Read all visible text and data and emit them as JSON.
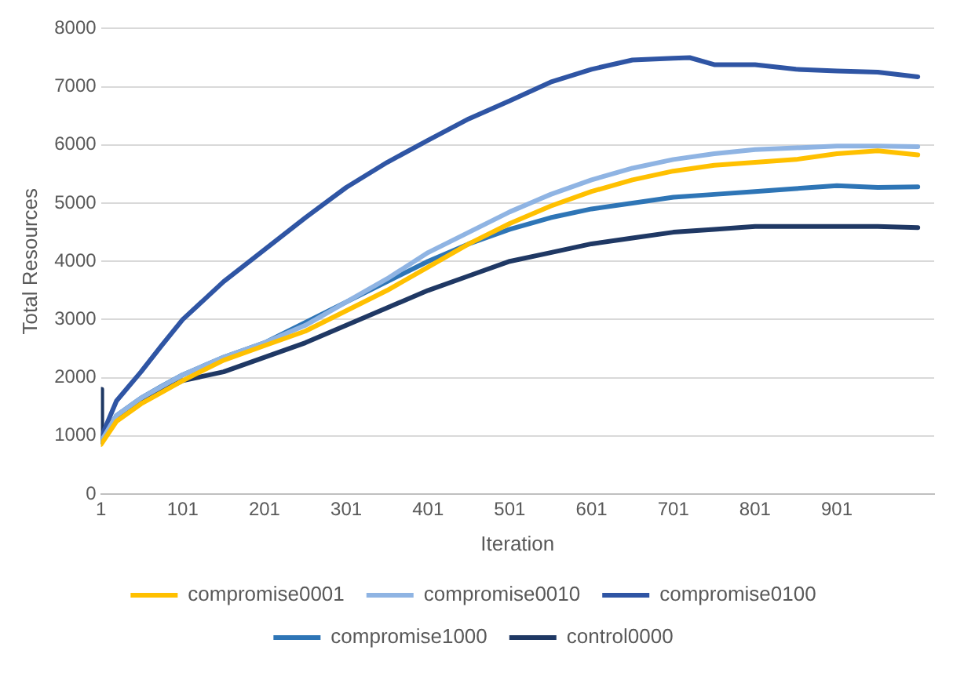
{
  "chart_data": {
    "type": "line",
    "xlabel": "Iteration",
    "ylabel": "Total Resources",
    "xlim": [
      1,
      1020
    ],
    "xticks": [
      1,
      101,
      201,
      301,
      401,
      501,
      601,
      701,
      801,
      901
    ],
    "ylim": [
      0,
      8000
    ],
    "yticks": [
      0,
      1000,
      2000,
      3000,
      4000,
      5000,
      6000,
      7000,
      8000
    ],
    "grid": "y",
    "legend": "bottom",
    "marker": "none",
    "line_style": "solid",
    "series": [
      {
        "name": "compromise0001",
        "color": "#ffc000",
        "x": [
          1,
          20,
          50,
          101,
          151,
          201,
          251,
          301,
          351,
          401,
          451,
          501,
          551,
          601,
          651,
          701,
          751,
          801,
          851,
          901,
          951,
          1000
        ],
        "values": [
          850,
          1250,
          1550,
          1950,
          2300,
          2550,
          2800,
          3150,
          3500,
          3900,
          4300,
          4650,
          4950,
          5200,
          5400,
          5550,
          5650,
          5700,
          5750,
          5850,
          5900,
          5830
        ]
      },
      {
        "name": "compromise0010",
        "color": "#8fb4e3",
        "x": [
          1,
          20,
          50,
          101,
          151,
          201,
          251,
          301,
          351,
          401,
          451,
          501,
          551,
          601,
          651,
          701,
          751,
          801,
          851,
          901,
          951,
          1000
        ],
        "values": [
          900,
          1350,
          1650,
          2050,
          2350,
          2600,
          2900,
          3300,
          3700,
          4150,
          4500,
          4850,
          5150,
          5400,
          5600,
          5750,
          5850,
          5920,
          5950,
          5980,
          5980,
          5970
        ]
      },
      {
        "name": "compromise0100",
        "color": "#2f55a4",
        "x": [
          1,
          5,
          20,
          50,
          75,
          101,
          151,
          201,
          251,
          301,
          351,
          401,
          451,
          501,
          551,
          601,
          651,
          701,
          721,
          751,
          801,
          851,
          901,
          951,
          1000
        ],
        "values": [
          900,
          1100,
          1600,
          2100,
          2550,
          3000,
          3650,
          4200,
          4750,
          5270,
          5700,
          6080,
          6450,
          6760,
          7080,
          7300,
          7460,
          7490,
          7500,
          7380,
          7380,
          7300,
          7270,
          7250,
          7170
        ]
      },
      {
        "name": "compromise1000",
        "color": "#2e75b6",
        "x": [
          1,
          20,
          50,
          75,
          101,
          151,
          201,
          251,
          301,
          351,
          401,
          451,
          501,
          551,
          601,
          651,
          701,
          751,
          801,
          851,
          901,
          951,
          1000
        ],
        "values": [
          900,
          1350,
          1650,
          1850,
          2050,
          2350,
          2600,
          2950,
          3300,
          3650,
          4000,
          4300,
          4550,
          4750,
          4900,
          5000,
          5100,
          5150,
          5200,
          5250,
          5300,
          5270,
          5280
        ]
      },
      {
        "name": "control0000",
        "color": "#1f3864",
        "x": [
          1,
          2,
          20,
          50,
          101,
          151,
          201,
          251,
          301,
          351,
          401,
          451,
          501,
          551,
          601,
          651,
          701,
          751,
          801,
          851,
          901,
          951,
          1000
        ],
        "values": [
          1800,
          900,
          1300,
          1600,
          1950,
          2100,
          2350,
          2600,
          2900,
          3200,
          3500,
          3750,
          4000,
          4150,
          4300,
          4400,
          4500,
          4550,
          4600,
          4600,
          4600,
          4600,
          4580
        ]
      }
    ]
  }
}
